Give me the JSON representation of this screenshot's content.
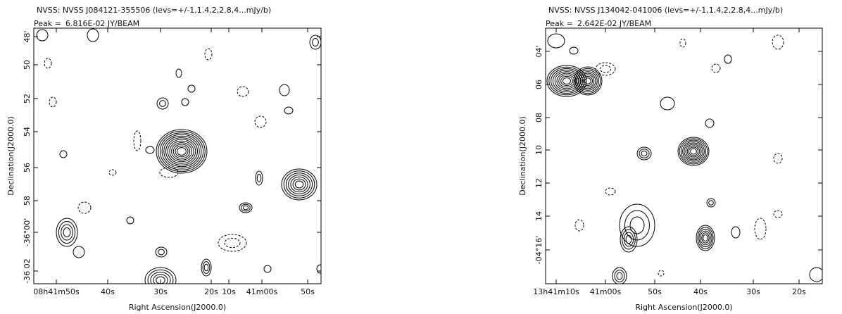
{
  "panels": [
    {
      "title": "NVSS: NVSS J084121-355506 (levs=+/-1,1.4,2,2.8,4...mJy/b)",
      "peak_label": "Peak =",
      "peak_value": "6.816E-02 JY/BEAM",
      "y_axis_label": "Declination(J2000.0)",
      "x_axis_label": "Right Ascension(J2000.0)",
      "y_ticks": [
        "48'",
        "50",
        "52",
        "54",
        "56",
        "58",
        "-36°00'",
        "-36 02"
      ],
      "x_ticks": [
        "08h41m50s",
        "40s",
        "30s",
        "20s",
        "10s",
        "41m00s",
        "50s"
      ]
    },
    {
      "title": "NVSS: NVSS J134042-041006 (levs=+/-1,1.4,2,2.8,4...mJy/b)",
      "peak_label": "Peak =",
      "peak_value": "2.642E-02 JY/BEAM",
      "y_axis_label": "Declination(J2000.0)",
      "x_axis_label": "Right Ascension(J2000.0)",
      "y_ticks": [
        "04'",
        "06",
        "08",
        "10",
        "12",
        "14",
        "-04°16'"
      ],
      "x_ticks": [
        "13h41m10s",
        "41m00s",
        "50s",
        "40s",
        "30s",
        "20s"
      ]
    }
  ]
}
